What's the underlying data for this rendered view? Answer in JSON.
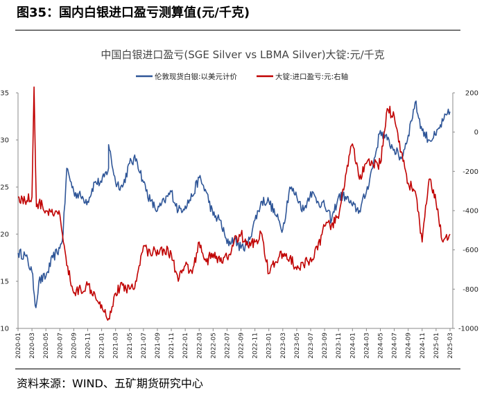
{
  "figure_label": "图35：国内白银进口盈亏测算值(元/千克)",
  "source": "资料来源：WIND、五矿期货研究中心",
  "chart_data": {
    "type": "line",
    "title": "中国白银进口盈亏(SGE Silver vs LBMA Silver)大锭:元/千克",
    "legend_position": "top",
    "grid": false,
    "x_ticks": [
      "2020-01",
      "2020-03",
      "2020-05",
      "2020-07",
      "2020-09",
      "2020-11",
      "2021-01",
      "2021-03",
      "2021-05",
      "2021-07",
      "2021-09",
      "2021-11",
      "2022-01",
      "2022-03",
      "2022-05",
      "2022-07",
      "2022-09",
      "2022-11",
      "2023-01",
      "2023-03",
      "2023-05",
      "2023-07",
      "2023-09",
      "2023-11",
      "2024-01",
      "2024-03",
      "2024-05",
      "2024-07",
      "2024-09",
      "2024-11",
      "2025-01",
      "2025-03"
    ],
    "y_left": {
      "ticks": [
        10,
        15,
        20,
        25,
        30,
        35
      ],
      "ylim": [
        10,
        35
      ]
    },
    "y_right": {
      "ticks": [
        -1000,
        -800,
        -600,
        -400,
        -200,
        0,
        200
      ],
      "ylim": [
        -1000,
        200
      ]
    },
    "series": [
      {
        "name": "伦敦现货白银:以美元计价",
        "axis": "left",
        "color": "#2e5597",
        "x": [
          "2020-01",
          "2020-02",
          "2020-03",
          "2020-03-18",
          "2020-04",
          "2020-05",
          "2020-06",
          "2020-07",
          "2020-07-15",
          "2020-08",
          "2020-09",
          "2020-10",
          "2020-11",
          "2020-12",
          "2021-01",
          "2021-02",
          "2021-02-01",
          "2021-03",
          "2021-04",
          "2021-05",
          "2021-06",
          "2021-07",
          "2021-08",
          "2021-09",
          "2021-10",
          "2021-11",
          "2021-12",
          "2022-01",
          "2022-02",
          "2022-03",
          "2022-04",
          "2022-05",
          "2022-06",
          "2022-07",
          "2022-08",
          "2022-09",
          "2022-10",
          "2022-11",
          "2022-12",
          "2023-01",
          "2023-02",
          "2023-03",
          "2023-04",
          "2023-05",
          "2023-06",
          "2023-07",
          "2023-08",
          "2023-09",
          "2023-10",
          "2023-11",
          "2023-12",
          "2024-01",
          "2024-02",
          "2024-03",
          "2024-04",
          "2024-05",
          "2024-06",
          "2024-07",
          "2024-08",
          "2024-09",
          "2024-10",
          "2024-11",
          "2024-12",
          "2025-01",
          "2025-02",
          "2025-03"
        ],
        "values": [
          18.0,
          17.8,
          16.0,
          12.2,
          15.0,
          15.5,
          17.5,
          18.5,
          20.0,
          27.0,
          24.5,
          24.0,
          23.5,
          25.5,
          25.5,
          27.0,
          29.5,
          25.5,
          25.0,
          27.5,
          28.0,
          25.5,
          23.5,
          22.5,
          23.5,
          24.5,
          22.5,
          23.0,
          24.0,
          26.0,
          24.5,
          22.0,
          21.5,
          19.0,
          19.5,
          18.5,
          19.0,
          21.5,
          23.5,
          23.5,
          22.0,
          20.5,
          25.0,
          24.0,
          22.5,
          24.5,
          23.5,
          23.0,
          21.5,
          24.0,
          24.0,
          23.0,
          22.5,
          24.5,
          27.5,
          31.0,
          30.0,
          29.0,
          28.0,
          30.5,
          34.0,
          31.0,
          30.0,
          30.5,
          32.0,
          33.0
        ]
      },
      {
        "name": "大锭:进口盈亏:元:右轴",
        "axis": "right",
        "color": "#c00000",
        "x": [
          "2020-01",
          "2020-02",
          "2020-03",
          "2020-03-10",
          "2020-03-20",
          "2020-04",
          "2020-05",
          "2020-06",
          "2020-07",
          "2020-08",
          "2020-09",
          "2020-10",
          "2020-11",
          "2020-12",
          "2021-01",
          "2021-02",
          "2021-03",
          "2021-04",
          "2021-05",
          "2021-06",
          "2021-07",
          "2021-08",
          "2021-09",
          "2021-10",
          "2021-11",
          "2021-12",
          "2022-01",
          "2022-02",
          "2022-03",
          "2022-04",
          "2022-05",
          "2022-06",
          "2022-07",
          "2022-08",
          "2022-09",
          "2022-10",
          "2022-11",
          "2022-12",
          "2023-01",
          "2023-02",
          "2023-03",
          "2023-04",
          "2023-05",
          "2023-06",
          "2023-07",
          "2023-08",
          "2023-09",
          "2023-10",
          "2023-11",
          "2023-12",
          "2024-01",
          "2024-02",
          "2024-03",
          "2024-04",
          "2024-05",
          "2024-06",
          "2024-07",
          "2024-08",
          "2024-09",
          "2024-10",
          "2024-11",
          "2024-12",
          "2025-01",
          "2025-02",
          "2025-03"
        ],
        "values": [
          -330,
          -350,
          -330,
          230,
          -380,
          -360,
          -400,
          -420,
          -420,
          -680,
          -820,
          -800,
          -780,
          -820,
          -880,
          -950,
          -820,
          -780,
          -800,
          -760,
          -580,
          -620,
          -600,
          -600,
          -620,
          -760,
          -680,
          -720,
          -560,
          -660,
          -620,
          -660,
          -640,
          -560,
          -520,
          -580,
          -560,
          -520,
          -720,
          -660,
          -620,
          -640,
          -700,
          -680,
          -640,
          -600,
          -480,
          -470,
          -440,
          -220,
          -60,
          -240,
          -160,
          -170,
          -160,
          120,
          80,
          -100,
          -260,
          -300,
          -560,
          -240,
          -360,
          -560,
          -520
        ]
      }
    ]
  }
}
